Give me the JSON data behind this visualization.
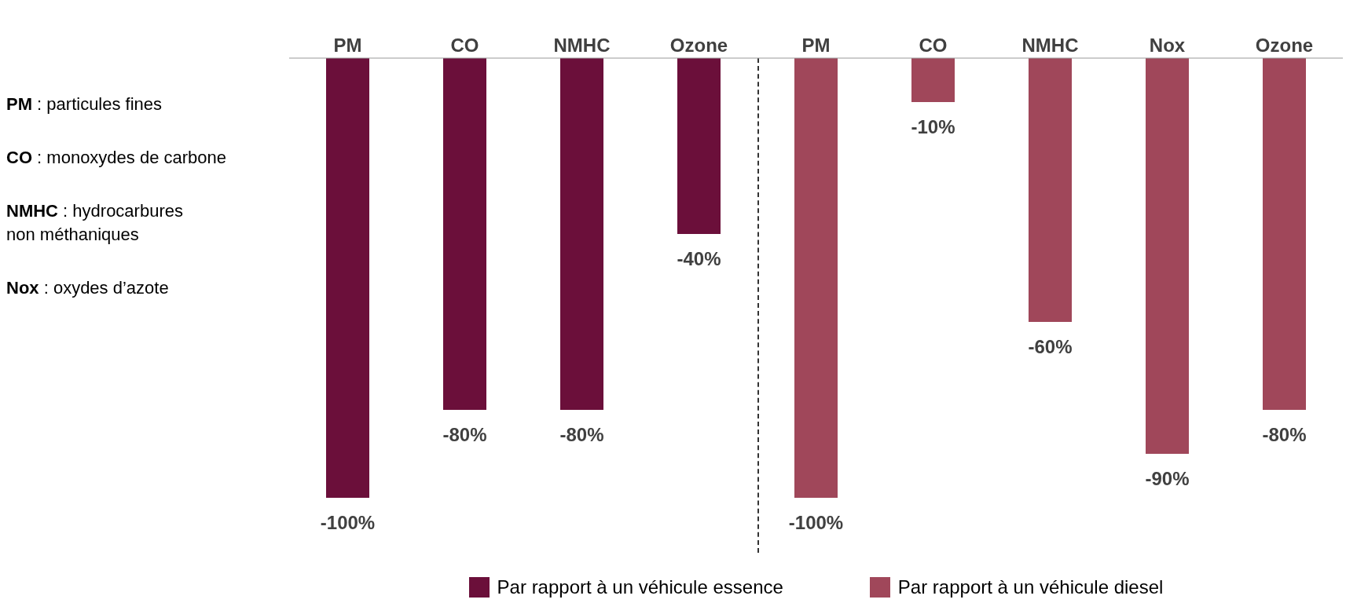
{
  "chart_data": {
    "type": "bar",
    "categories": [
      "PM",
      "CO",
      "NMHC",
      "Ozone",
      "PM",
      "CO",
      "NMHC",
      "Nox",
      "Ozone"
    ],
    "stacked": true,
    "legend": "bottom",
    "series": [
      {
        "name": "Par rapport à un véhicule essence",
        "color": "#6b0f3a",
        "values": [
          -100,
          -80,
          -80,
          -40,
          null,
          null,
          null,
          null,
          null
        ],
        "value_labels": [
          "-100%",
          "-80%",
          "-80%",
          "-40%",
          null,
          null,
          null,
          null,
          null
        ]
      },
      {
        "name": "Par rapport à un véhicule diesel",
        "color": "#a0475a",
        "values": [
          null,
          null,
          null,
          null,
          -100,
          -10,
          -60,
          -90,
          -80
        ],
        "value_labels": [
          null,
          null,
          null,
          null,
          "-100%",
          "-10%",
          "-60%",
          "-90%",
          "-80%"
        ]
      }
    ],
    "annotations": [
      "PM : particules fines",
      "CO : monoxydes de carbone",
      "NMHC : hydrocarbures non méthaniques",
      "Nox : oxydes d’azote"
    ]
  }
}
